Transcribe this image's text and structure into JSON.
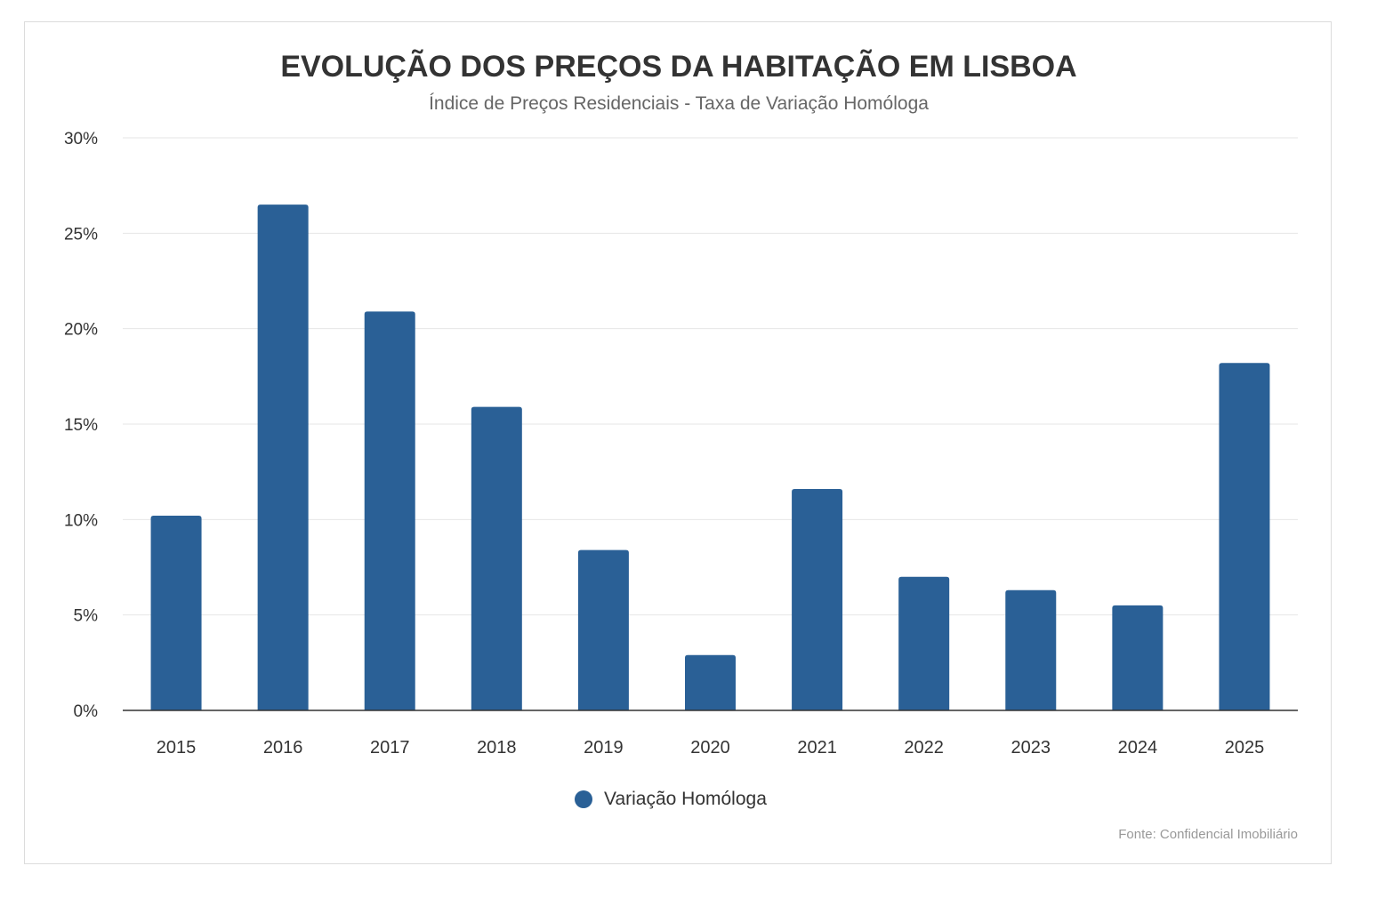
{
  "chart_data": {
    "type": "bar",
    "title": "EVOLUÇÃO DOS PREÇOS DA HABITAÇÃO EM LISBOA",
    "subtitle": "Índice de Preços Residenciais - Taxa de Variação Homóloga",
    "categories": [
      "2015",
      "2016",
      "2017",
      "2018",
      "2019",
      "2020",
      "2021",
      "2022",
      "2023",
      "2024",
      "2025"
    ],
    "series": [
      {
        "name": "Variação Homóloga",
        "values": [
          10.2,
          26.5,
          20.9,
          15.9,
          8.4,
          2.9,
          11.6,
          7.0,
          6.3,
          5.5,
          18.2
        ],
        "color": "#2a6096"
      }
    ],
    "ylim": [
      0,
      30
    ],
    "yticks": [
      "0%",
      "5%",
      "10%",
      "15%",
      "20%",
      "25%",
      "30%"
    ],
    "grid": true,
    "legend": "bottom-center",
    "source": "Fonte: Confidencial Imobiliário"
  }
}
